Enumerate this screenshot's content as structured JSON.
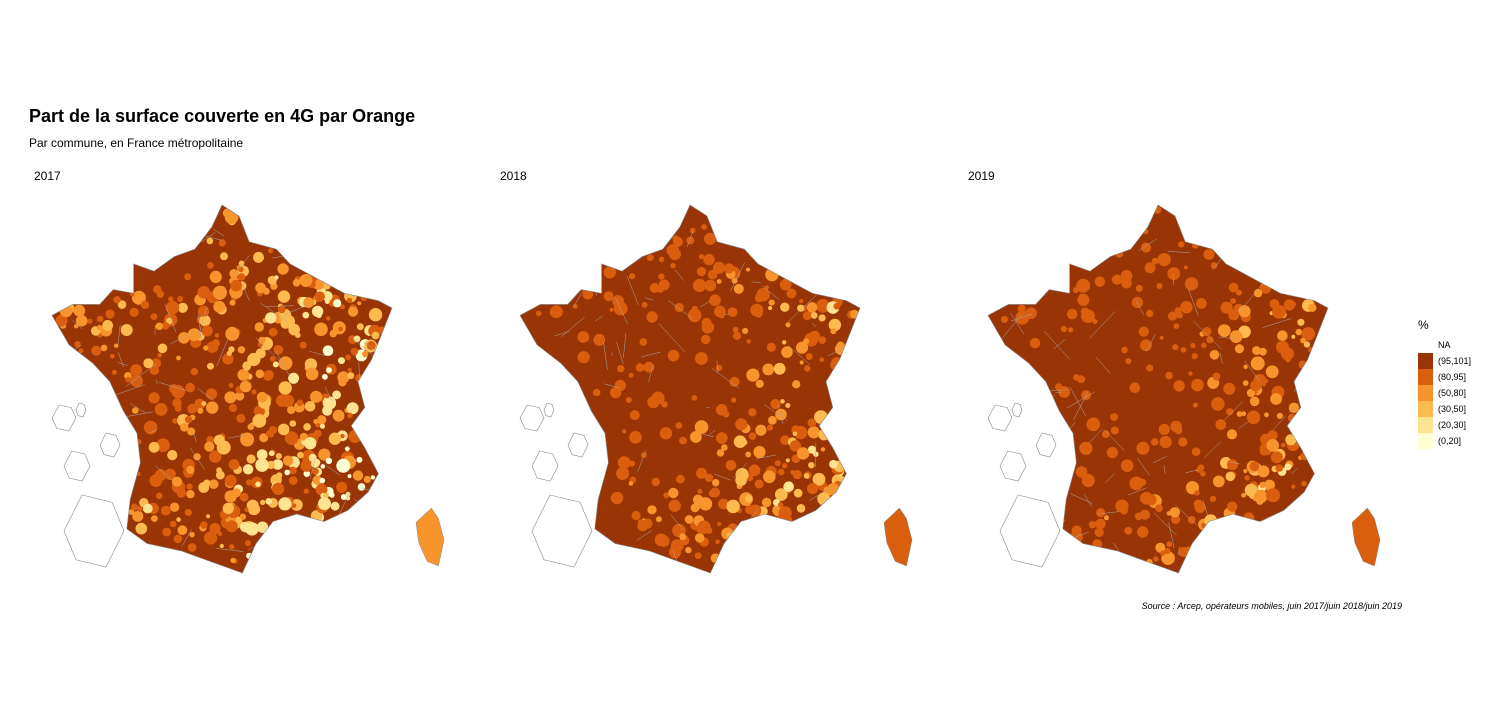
{
  "title": "Part de la surface couverte en 4G par Orange",
  "subtitle": "Par commune, en France métropolitaine",
  "panels": [
    {
      "year": "2017"
    },
    {
      "year": "2018"
    },
    {
      "year": "2019"
    }
  ],
  "legend": {
    "title": "%",
    "na_label": "NA",
    "classes": [
      {
        "label": "(95,101]",
        "color": "#993404"
      },
      {
        "label": "(80,95]",
        "color": "#d95f0e"
      },
      {
        "label": "(50,80]",
        "color": "#f7942c"
      },
      {
        "label": "(30,50]",
        "color": "#fdba4e"
      },
      {
        "label": "(20,30]",
        "color": "#fee391"
      },
      {
        "label": "(0,20]",
        "color": "#ffffd4"
      }
    ]
  },
  "source": "Source : Arcep, opérateurs mobiles, juin 2017/juin 2018/juin 2019"
}
